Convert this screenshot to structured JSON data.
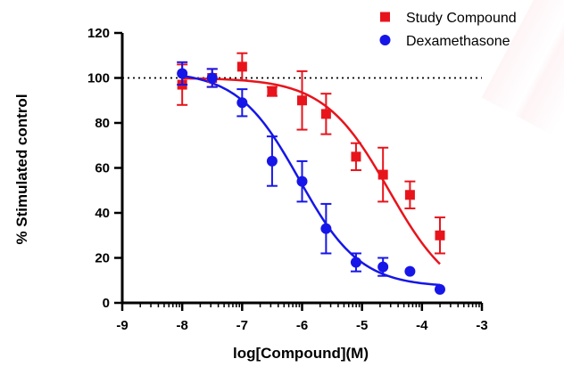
{
  "chart_data": {
    "type": "scatter",
    "title": "",
    "xlabel": "log[Compound](M)",
    "ylabel": "% Stimulated control",
    "xlim": [
      -9,
      -3
    ],
    "ylim": [
      0,
      120
    ],
    "x_ticks": [
      -9,
      -8,
      -7,
      -6,
      -5,
      -4,
      -3
    ],
    "y_ticks": [
      0,
      20,
      40,
      60,
      80,
      100,
      120
    ],
    "reference_line": {
      "y": 100,
      "style": "dotted"
    },
    "legend_position": "top-right",
    "grid": false,
    "series": [
      {
        "name": "Study Compound",
        "color": "#e8141c",
        "marker": "square",
        "x": [
          -8.0,
          -7.5,
          -7.0,
          -6.5,
          -6.0,
          -5.6,
          -5.1,
          -4.65,
          -4.2,
          -3.7
        ],
        "y": [
          97,
          100,
          105,
          94,
          90,
          84,
          65,
          57,
          48,
          30
        ],
        "err": [
          9,
          4,
          6,
          2,
          13,
          9,
          6,
          12,
          6,
          8
        ],
        "fit": {
          "top": 100,
          "bottom": 0,
          "logIC50": -4.55,
          "hill": 0.8
        }
      },
      {
        "name": "Dexamethasone",
        "color": "#1616e8",
        "marker": "circle",
        "x": [
          -8.0,
          -7.5,
          -7.0,
          -6.5,
          -6.0,
          -5.6,
          -5.1,
          -4.65,
          -4.2,
          -3.7
        ],
        "y": [
          102,
          100,
          89,
          63,
          54,
          33,
          18,
          16,
          14,
          6
        ],
        "err": [
          5,
          4,
          6,
          11,
          9,
          11,
          4,
          4,
          0,
          0
        ],
        "fit": {
          "top": 103,
          "bottom": 7,
          "logIC50": -6.05,
          "hill": 0.85
        }
      }
    ]
  }
}
